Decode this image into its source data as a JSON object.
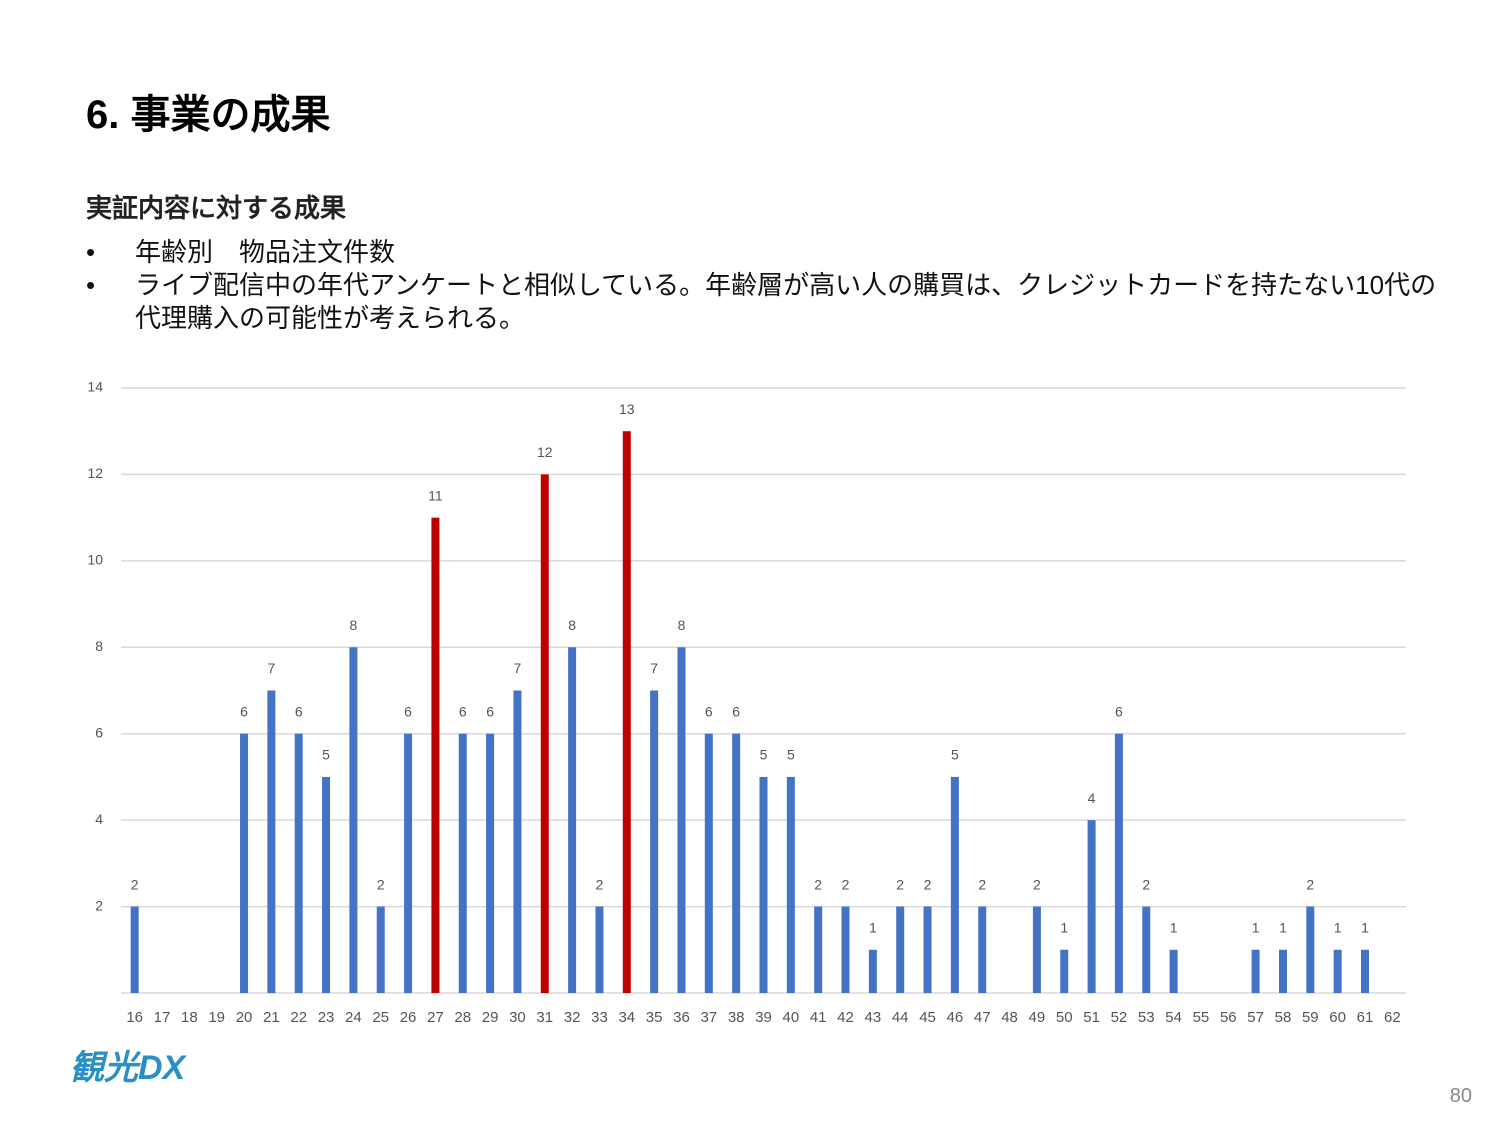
{
  "title": "6. 事業の成果",
  "subtitle": "実証内容に対する成果",
  "bullets": [
    "年齢別　物品注文件数",
    "ライブ配信中の年代アンケートと相似している。年齢層が高い人の購買は、クレジットカードを持たない10代の代理購入の可能性が考えられる。"
  ],
  "logo": "観光DX",
  "page_number": "80",
  "chart_data": {
    "type": "bar",
    "categories": [
      "16",
      "17",
      "18",
      "19",
      "20",
      "21",
      "22",
      "23",
      "24",
      "25",
      "26",
      "27",
      "28",
      "29",
      "30",
      "31",
      "32",
      "33",
      "34",
      "35",
      "36",
      "37",
      "38",
      "39",
      "40",
      "41",
      "42",
      "43",
      "44",
      "45",
      "46",
      "47",
      "48",
      "49",
      "50",
      "51",
      "52",
      "53",
      "54",
      "55",
      "56",
      "57",
      "58",
      "59",
      "60",
      "61",
      "62"
    ],
    "values": [
      2,
      null,
      null,
      null,
      6,
      7,
      6,
      5,
      8,
      2,
      6,
      11,
      6,
      6,
      7,
      12,
      8,
      2,
      13,
      7,
      8,
      6,
      6,
      5,
      5,
      2,
      2,
      1,
      2,
      2,
      5,
      2,
      null,
      2,
      1,
      4,
      6,
      2,
      1,
      null,
      null,
      1,
      1,
      2,
      1,
      1,
      null
    ],
    "colors": [
      "#4472c4",
      "#4472c4",
      "#4472c4",
      "#4472c4",
      "#4472c4",
      "#4472c4",
      "#4472c4",
      "#4472c4",
      "#4472c4",
      "#4472c4",
      "#4472c4",
      "#c00000",
      "#4472c4",
      "#4472c4",
      "#4472c4",
      "#c00000",
      "#4472c4",
      "#4472c4",
      "#c00000",
      "#4472c4",
      "#4472c4",
      "#4472c4",
      "#4472c4",
      "#4472c4",
      "#4472c4",
      "#4472c4",
      "#4472c4",
      "#4472c4",
      "#4472c4",
      "#4472c4",
      "#4472c4",
      "#4472c4",
      "#4472c4",
      "#4472c4",
      "#4472c4",
      "#4472c4",
      "#4472c4",
      "#4472c4",
      "#4472c4",
      "#4472c4",
      "#4472c4",
      "#4472c4",
      "#4472c4",
      "#4472c4",
      "#4472c4",
      "#4472c4",
      "#4472c4"
    ],
    "ylim": [
      0,
      14
    ],
    "yticks": [
      2,
      4,
      6,
      8,
      10,
      12,
      14
    ],
    "grid": true
  }
}
